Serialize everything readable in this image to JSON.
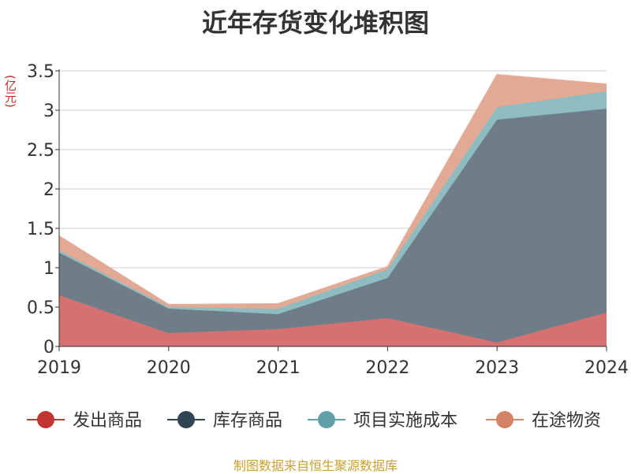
{
  "chart_data": {
    "type": "area",
    "stacked": true,
    "title": "近年存货变化堆积图",
    "unit": "(亿元)",
    "x": [
      "2019",
      "2020",
      "2021",
      "2022",
      "2023",
      "2024"
    ],
    "ylim": [
      0,
      3.5
    ],
    "yticks": [
      "0",
      "0.5",
      "1",
      "1.5",
      "2",
      "2.5",
      "3",
      "3.5"
    ],
    "grid": true,
    "legend_position": "bottom",
    "series": [
      {
        "name": "发出商品",
        "color": "#c23531",
        "fill": "#d57170",
        "values": [
          0.65,
          0.17,
          0.22,
          0.36,
          0.05,
          0.43
        ]
      },
      {
        "name": "库存商品",
        "color": "#2f4554",
        "fill": "#6e7d87",
        "values": [
          0.54,
          0.31,
          0.19,
          0.51,
          2.83,
          2.59
        ]
      },
      {
        "name": "项目实施成本",
        "color": "#61a0a8",
        "fill": "#8fbcc0",
        "values": [
          0.03,
          0.02,
          0.07,
          0.11,
          0.16,
          0.22
        ]
      },
      {
        "name": "在途物资",
        "color": "#d48265",
        "fill": "#e2a994",
        "values": [
          0.18,
          0.03,
          0.06,
          0.03,
          0.41,
          0.09
        ]
      }
    ],
    "source": "制图数据来自恒生聚源数据库"
  }
}
